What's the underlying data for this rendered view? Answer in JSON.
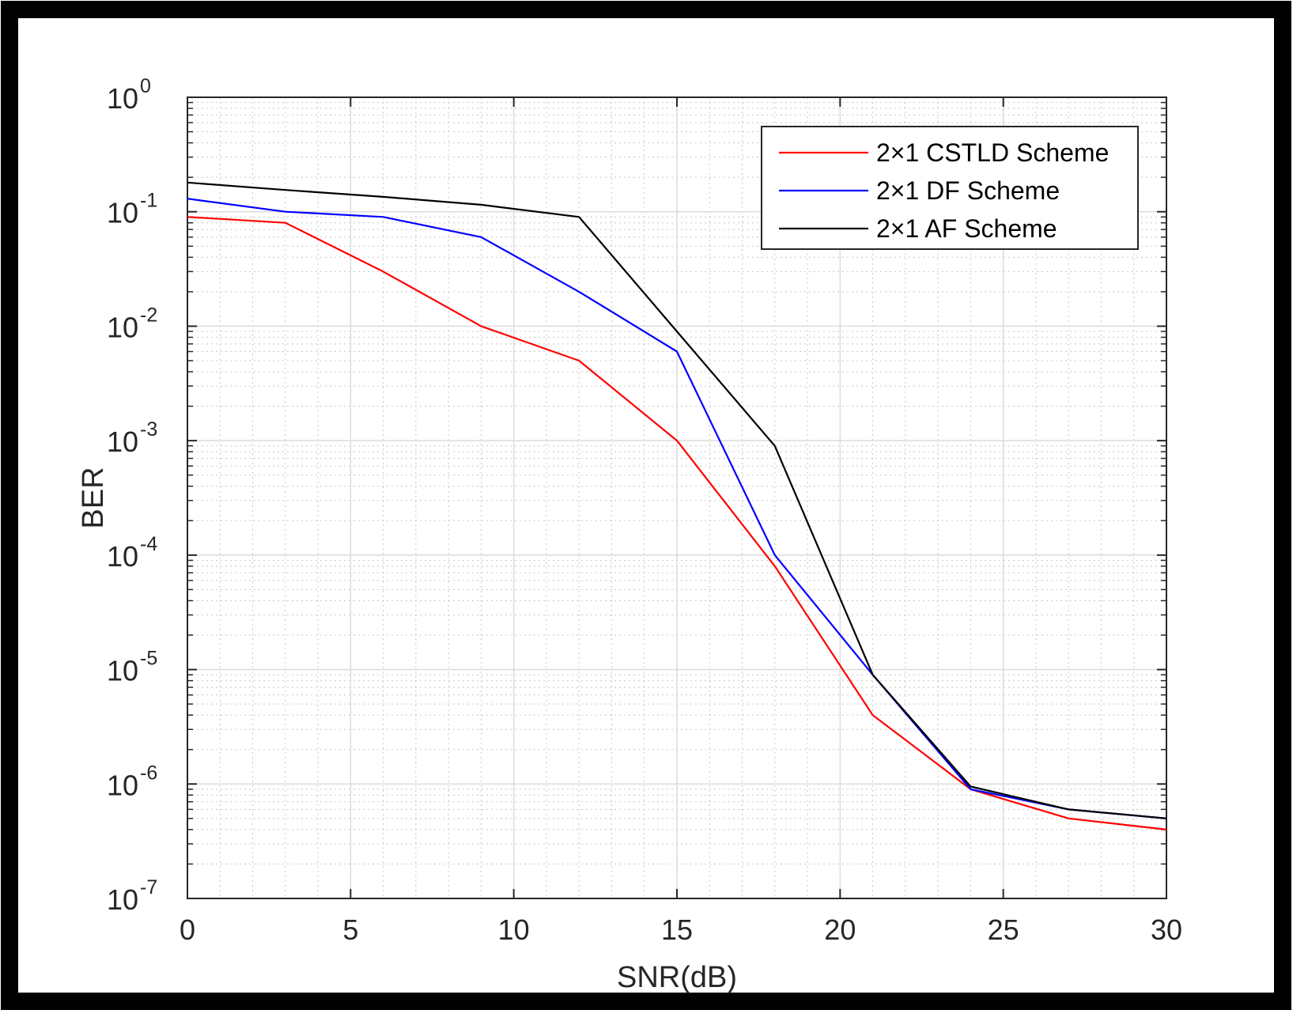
{
  "chart_data": {
    "type": "line",
    "title": "",
    "xlabel": "SNR(dB)",
    "ylabel": "BER",
    "xlim": [
      0,
      30
    ],
    "ylim": [
      1e-07,
      1
    ],
    "yscale": "log",
    "grid": true,
    "minor_grid": true,
    "legend_position": "top-right",
    "x_ticks": [
      0,
      5,
      10,
      15,
      20,
      25,
      30
    ],
    "x_tick_labels": [
      "0",
      "5",
      "10",
      "15",
      "20",
      "25",
      "30"
    ],
    "y_ticks": [
      {
        "value": 1.0,
        "base": "10",
        "exp": "0"
      },
      {
        "value": 0.1,
        "base": "10",
        "exp": "-1"
      },
      {
        "value": 0.01,
        "base": "10",
        "exp": "-2"
      },
      {
        "value": 0.001,
        "base": "10",
        "exp": "-3"
      },
      {
        "value": 0.0001,
        "base": "10",
        "exp": "-4"
      },
      {
        "value": 1e-05,
        "base": "10",
        "exp": "-5"
      },
      {
        "value": 1e-06,
        "base": "10",
        "exp": "-6"
      },
      {
        "value": 1e-07,
        "base": "10",
        "exp": "-7"
      }
    ],
    "x": [
      0,
      3,
      6,
      9,
      12,
      15,
      18,
      21,
      24,
      27,
      30
    ],
    "series": [
      {
        "name": "2×1 CSTLD Scheme",
        "color": "#ff0000",
        "values": [
          0.09,
          0.08,
          0.03,
          0.01,
          0.005,
          0.001,
          8e-05,
          4e-06,
          9e-07,
          5e-07,
          4e-07
        ]
      },
      {
        "name": "2×1 DF Scheme",
        "color": "#0000ff",
        "values": [
          0.13,
          0.1,
          0.09,
          0.06,
          0.02,
          0.006,
          0.0001,
          9e-06,
          9e-07,
          6e-07,
          5e-07
        ]
      },
      {
        "name": "2×1 AF Scheme",
        "color": "#000000",
        "values": [
          0.18,
          0.155,
          0.135,
          0.115,
          0.09,
          0.009,
          0.0009,
          9e-06,
          9.5e-07,
          6e-07,
          5e-07
        ]
      }
    ]
  }
}
